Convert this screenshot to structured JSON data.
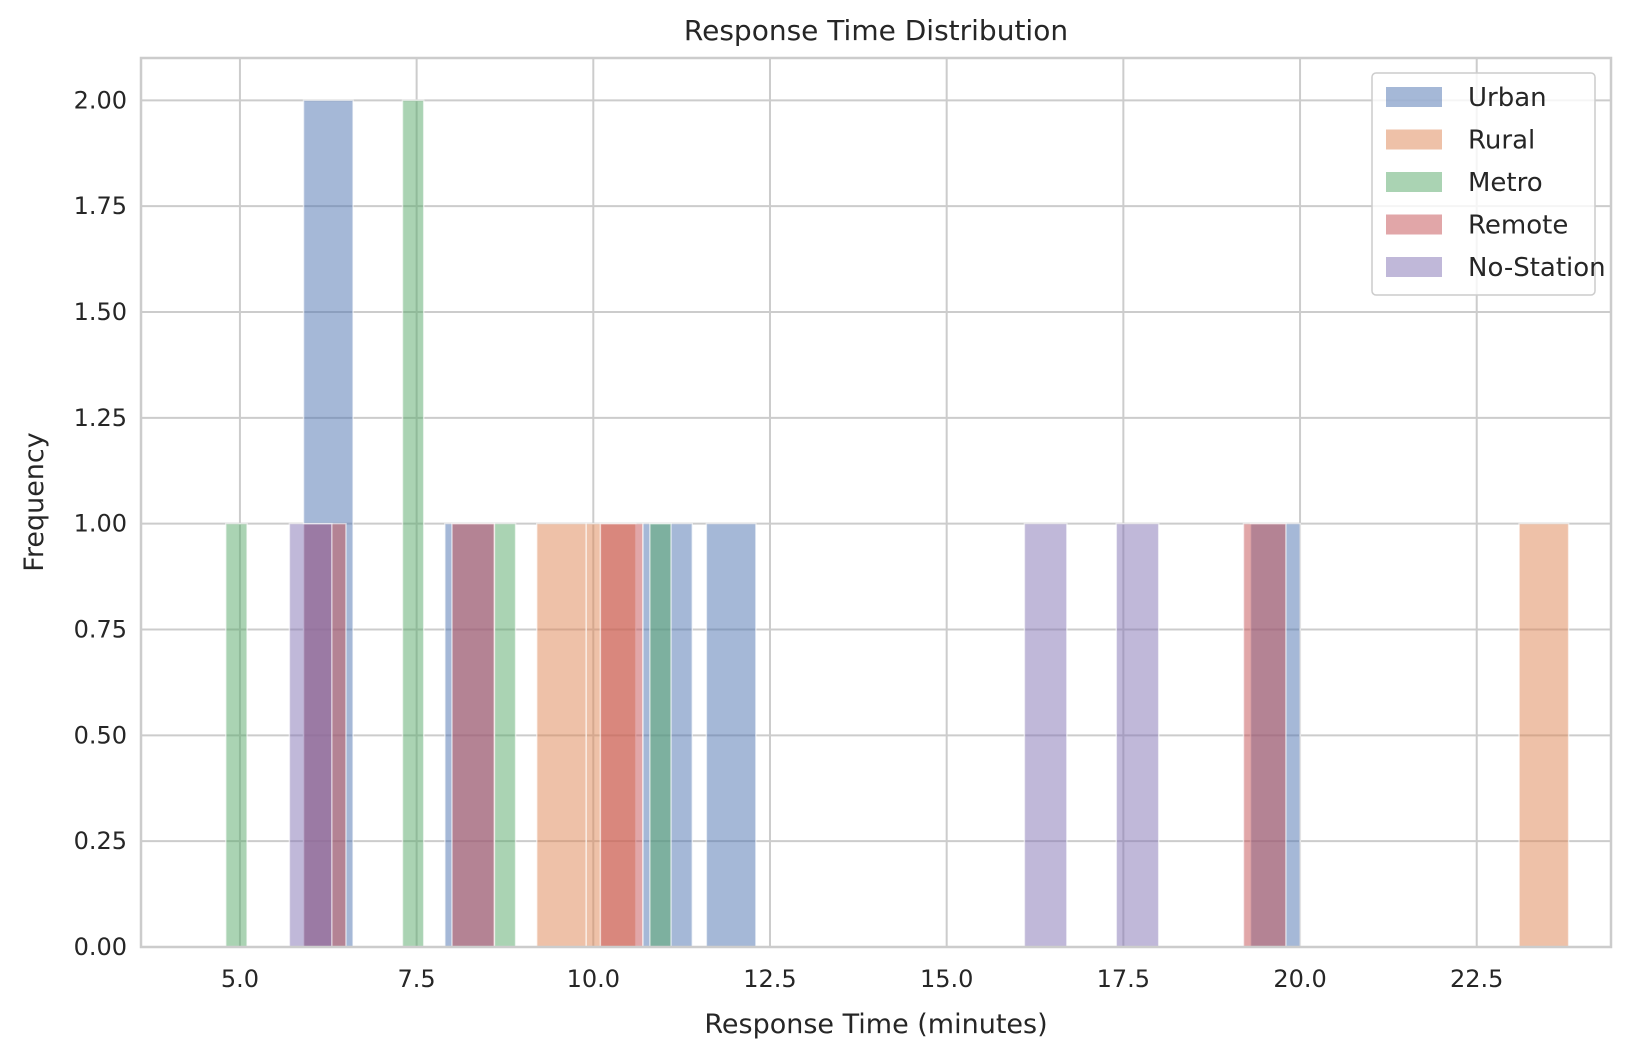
{
  "chart_data": {
    "type": "bar",
    "subtype": "overlaid-histogram",
    "title": "Response Time Distribution",
    "xlabel": "Response Time (minutes)",
    "ylabel": "Frequency",
    "xlim": [
      3.6,
      24.4
    ],
    "ylim": [
      0,
      2.1
    ],
    "xticks": [
      5.0,
      7.5,
      10.0,
      12.5,
      15.0,
      17.5,
      20.0,
      22.5
    ],
    "xtick_labels": [
      "5.0",
      "7.5",
      "10.0",
      "12.5",
      "15.0",
      "17.5",
      "20.0",
      "22.5"
    ],
    "yticks": [
      0,
      0.25,
      0.5,
      0.75,
      1.0,
      1.25,
      1.5,
      1.75,
      2.0
    ],
    "ytick_labels": [
      "0.00",
      "0.25",
      "0.50",
      "0.75",
      "1.00",
      "1.25",
      "1.50",
      "1.75",
      "2.00"
    ],
    "grid": true,
    "legend_position": "top-right",
    "bar_opacity": 0.5,
    "series": [
      {
        "name": "Urban",
        "color": "#4c72b0",
        "bins": [
          {
            "x0": 5.9,
            "x1": 6.6,
            "count": 2
          },
          {
            "x0": 7.9,
            "x1": 8.6,
            "count": 1
          },
          {
            "x0": 10.7,
            "x1": 11.4,
            "count": 1
          },
          {
            "x0": 11.6,
            "x1": 12.3,
            "count": 1
          },
          {
            "x0": 19.3,
            "x1": 20.0,
            "count": 1
          }
        ]
      },
      {
        "name": "Rural",
        "color": "#dd8452",
        "bins": [
          {
            "x0": 9.2,
            "x1": 9.9,
            "count": 1
          },
          {
            "x0": 9.9,
            "x1": 10.6,
            "count": 1
          },
          {
            "x0": 23.1,
            "x1": 23.8,
            "count": 1
          }
        ]
      },
      {
        "name": "Metro",
        "color": "#55a868",
        "bins": [
          {
            "x0": 4.8,
            "x1": 5.1,
            "count": 1
          },
          {
            "x0": 7.3,
            "x1": 7.6,
            "count": 2
          },
          {
            "x0": 8.6,
            "x1": 8.9,
            "count": 1
          },
          {
            "x0": 10.8,
            "x1": 11.1,
            "count": 1
          }
        ]
      },
      {
        "name": "Remote",
        "color": "#c44e52",
        "bins": [
          {
            "x0": 5.9,
            "x1": 6.5,
            "count": 1
          },
          {
            "x0": 8.0,
            "x1": 8.6,
            "count": 1
          },
          {
            "x0": 10.1,
            "x1": 10.7,
            "count": 1
          },
          {
            "x0": 19.2,
            "x1": 19.8,
            "count": 1
          }
        ]
      },
      {
        "name": "No-Station",
        "color": "#8172b3",
        "bins": [
          {
            "x0": 5.7,
            "x1": 6.3,
            "count": 1
          },
          {
            "x0": 16.1,
            "x1": 16.7,
            "count": 1
          },
          {
            "x0": 17.4,
            "x1": 18.0,
            "count": 1
          }
        ]
      }
    ]
  }
}
